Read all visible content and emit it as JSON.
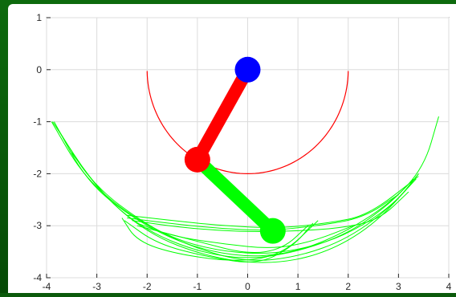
{
  "chart_data": {
    "type": "line",
    "title": "",
    "xlabel": "",
    "ylabel": "",
    "xlim": [
      -4,
      4
    ],
    "ylim": [
      -4,
      1
    ],
    "grid": true,
    "x_ticks": [
      "-4",
      "-3",
      "-2",
      "-1",
      "0",
      "1",
      "2",
      "3",
      "4"
    ],
    "y_ticks": [
      "1",
      "0",
      "-1",
      "-2",
      "-3",
      "-4"
    ],
    "colors": {
      "arc": "#ff0000",
      "trace": "#00ff00",
      "rod1": "#ff0000",
      "rod2": "#00ff00",
      "pivot": "#0000ff",
      "joint": "#ff0000",
      "tip": "#00ff00"
    },
    "pendulum": {
      "pivot": [
        0,
        0
      ],
      "joint": [
        -1,
        -1.73
      ],
      "tip": [
        0.5,
        -3.1
      ]
    },
    "arc_radius": 2,
    "arc_angle_range_deg": [
      0,
      170
    ],
    "trace_series": [
      {
        "x": [
          -3.9,
          -3.3,
          -2.5,
          -1.5,
          -0.5,
          0.5,
          1.5,
          2.3,
          3.0,
          3.4
        ],
        "y": [
          -1.0,
          -2.0,
          -2.7,
          -3.25,
          -3.5,
          -3.55,
          -3.35,
          -3.0,
          -2.5,
          -2.0
        ]
      },
      {
        "x": [
          -3.85,
          -3.2,
          -2.3,
          -1.3,
          -0.2,
          0.8,
          1.8,
          2.8,
          3.5,
          3.8
        ],
        "y": [
          -1.0,
          -2.15,
          -2.85,
          -3.35,
          -3.6,
          -3.55,
          -3.2,
          -2.6,
          -1.9,
          -0.9
        ]
      },
      {
        "x": [
          -3.8,
          -3.1,
          -2.0,
          -1.0,
          0.0,
          1.0,
          2.0,
          2.9,
          3.4
        ],
        "y": [
          -1.1,
          -2.2,
          -3.0,
          -3.45,
          -3.7,
          -3.6,
          -3.25,
          -2.6,
          -2.0
        ]
      },
      {
        "x": [
          -3.88,
          -3.0,
          -2.0,
          -0.8,
          0.4,
          1.5,
          2.5,
          3.35
        ],
        "y": [
          -1.0,
          -2.3,
          -3.15,
          -3.6,
          -3.75,
          -3.55,
          -3.0,
          -2.1
        ]
      },
      {
        "x": [
          -2.4,
          -1.6,
          -0.6,
          0.4,
          1.4,
          2.3,
          3.0
        ],
        "y": [
          -2.85,
          -2.95,
          -3.05,
          -3.1,
          -3.0,
          -2.85,
          -2.4
        ]
      },
      {
        "x": [
          -2.3,
          -1.2,
          0.0,
          1.0,
          1.8,
          2.6,
          3.2
        ],
        "y": [
          -2.9,
          -3.05,
          -3.12,
          -3.1,
          -3.05,
          -2.9,
          -2.35
        ]
      },
      {
        "x": [
          -2.5,
          -2.2,
          -1.4,
          -0.2,
          0.7,
          1.4
        ],
        "y": [
          -2.85,
          -3.3,
          -3.55,
          -3.7,
          -3.55,
          -2.9
        ]
      },
      {
        "x": [
          -2.45,
          -1.8,
          -0.8,
          0.2,
          0.9,
          1.3
        ],
        "y": [
          -2.9,
          -3.35,
          -3.6,
          -3.75,
          -3.4,
          -2.95
        ]
      },
      {
        "x": [
          -2.2,
          -1.5,
          -0.5,
          0.5,
          1.3,
          2.1
        ],
        "y": [
          -2.95,
          -3.2,
          -3.35,
          -3.45,
          -3.3,
          -3.0
        ]
      },
      {
        "x": [
          -2.4,
          -1.5,
          -0.5,
          0.6,
          1.6,
          2.4,
          3.4
        ],
        "y": [
          -2.8,
          -2.9,
          -3.0,
          -3.05,
          -2.95,
          -2.8,
          -2.05
        ]
      },
      {
        "x": [
          -2.2,
          -1.0,
          0.0,
          0.7,
          1.2
        ],
        "y": [
          -3.0,
          -3.3,
          -3.55,
          -3.45,
          -3.0
        ]
      },
      {
        "x": [
          -3.5,
          -2.8,
          -2.0,
          -1.0,
          0.0,
          1.0,
          2.0,
          2.8,
          3.3
        ],
        "y": [
          -1.6,
          -2.5,
          -3.1,
          -3.5,
          -3.65,
          -3.5,
          -3.15,
          -2.6,
          -2.1
        ]
      }
    ]
  }
}
